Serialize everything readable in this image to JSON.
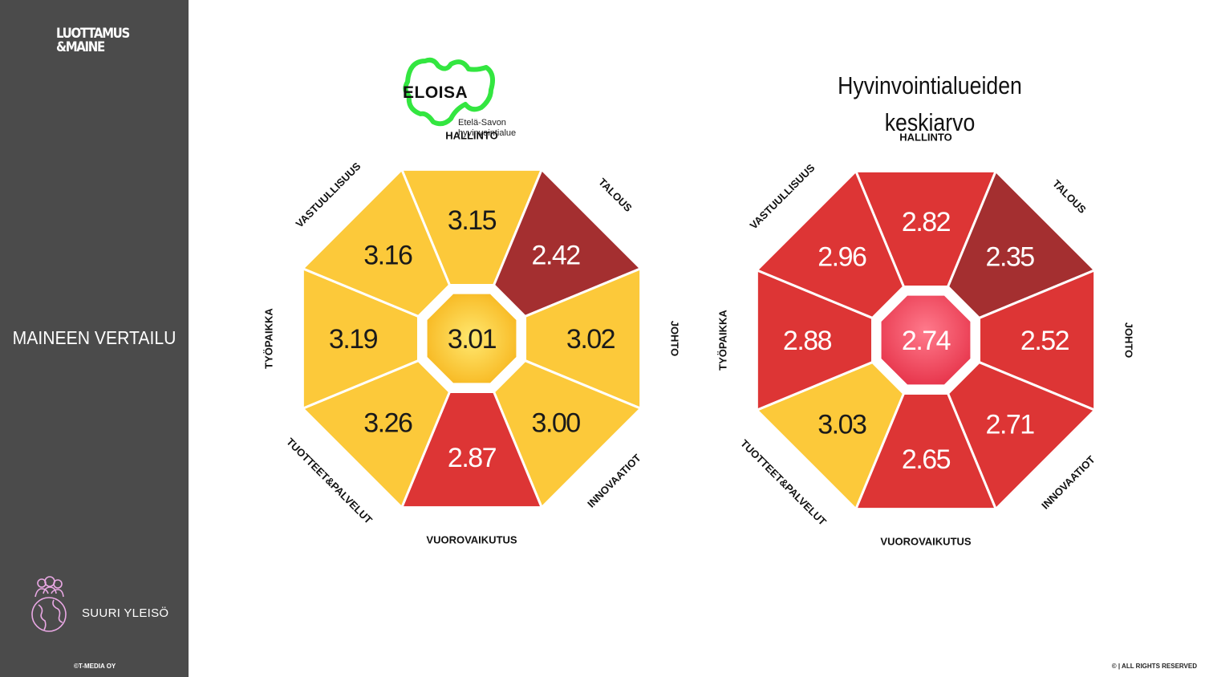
{
  "sidebar": {
    "logo_line1": "LUOTTAMUS",
    "logo_line2": "&MAINE",
    "title": "MAINEEN VERTAILU",
    "audience_label": "SUURI YLEISÖ",
    "audience_icon": "people-globe-icon",
    "copyright": "©T-MEDIA OY",
    "background": "#4b4b4b"
  },
  "footer": {
    "rights": "© | ALL RIGHTS RESERVED"
  },
  "eloisa": {
    "name": "ELOISA",
    "sub_line1": "Etelä-Savon",
    "sub_line2": "hyvinvointialue",
    "brand_color": "#33e640"
  },
  "average_title_line1": "Hyvinvointialueiden",
  "average_title_line2": "keskiarvo",
  "colors": {
    "yellow": "#fcc93a",
    "red": "#dd3535",
    "dark_red": "#a42f30",
    "center_yellow": "#f7b51c",
    "center_red": "#e8384e"
  },
  "chart_data": [
    {
      "type": "octagon-reputation",
      "name": "ELOISA",
      "center": {
        "label": "3.01",
        "color": "center_yellow"
      },
      "sectors": [
        {
          "dimension": "HALLINTO",
          "value": "3.15",
          "color": "yellow"
        },
        {
          "dimension": "TALOUS",
          "value": "2.42",
          "color": "dark_red"
        },
        {
          "dimension": "JOHTO",
          "value": "3.02",
          "color": "yellow"
        },
        {
          "dimension": "INNOVAATIOT",
          "value": "3.00",
          "color": "yellow"
        },
        {
          "dimension": "VUOROVAIKUTUS",
          "value": "2.87",
          "color": "red"
        },
        {
          "dimension": "TUOTTEET&PALVELUT",
          "value": "3.26",
          "color": "yellow"
        },
        {
          "dimension": "TYÖPAIKKA",
          "value": "3.19",
          "color": "yellow"
        },
        {
          "dimension": "VASTUULLISUUS",
          "value": "3.16",
          "color": "yellow"
        }
      ]
    },
    {
      "type": "octagon-reputation",
      "name": "Hyvinvointialueiden keskiarvo",
      "center": {
        "label": "2.74",
        "color": "center_red"
      },
      "sectors": [
        {
          "dimension": "HALLINTO",
          "value": "2.82",
          "color": "red"
        },
        {
          "dimension": "TALOUS",
          "value": "2.35",
          "color": "dark_red"
        },
        {
          "dimension": "JOHTO",
          "value": "2.52",
          "color": "red"
        },
        {
          "dimension": "INNOVAATIOT",
          "value": "2.71",
          "color": "red"
        },
        {
          "dimension": "VUOROVAIKUTUS",
          "value": "2.65",
          "color": "red"
        },
        {
          "dimension": "TUOTTEET&PALVELUT",
          "value": "3.03",
          "color": "yellow"
        },
        {
          "dimension": "TYÖPAIKKA",
          "value": "2.88",
          "color": "red"
        },
        {
          "dimension": "VASTUULLISUUS",
          "value": "2.96",
          "color": "red"
        }
      ]
    }
  ]
}
